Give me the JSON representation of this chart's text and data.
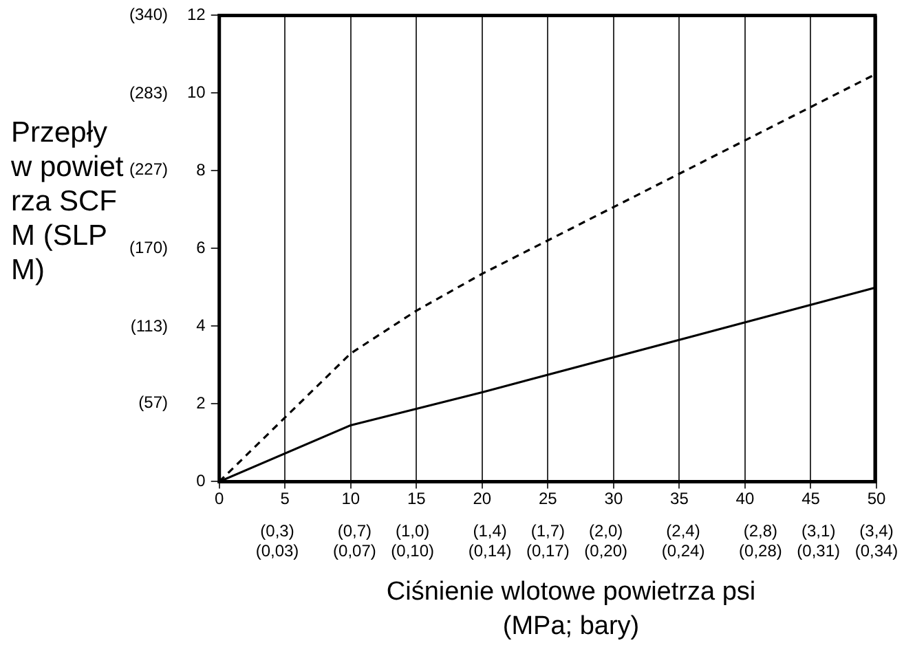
{
  "chart_data": {
    "type": "line",
    "xlabel": "Ciśnienie wlotowe powietrza psi (MPa; bary)",
    "y2label": "Przepływ powietrza SCFM (SLPM)",
    "xlim": [
      0,
      50
    ],
    "ylim": [
      0,
      12
    ],
    "xticks": [
      0,
      5,
      10,
      15,
      20,
      25,
      30,
      35,
      40,
      45,
      50
    ],
    "yticks": [
      0,
      2,
      4,
      6,
      8,
      10,
      12
    ],
    "x2lim": [
      0,
      3.4
    ],
    "x2ticks": [
      {
        "value": 0.3,
        "label": "(0,3)"
      },
      {
        "value": 0.7,
        "label": "(0,7)"
      },
      {
        "value": 1.0,
        "label": "(1,0)"
      },
      {
        "value": 1.4,
        "label": "(1,4)"
      },
      {
        "value": 1.7,
        "label": "(1,7)"
      },
      {
        "value": 2.0,
        "label": "(2,0)"
      },
      {
        "value": 2.4,
        "label": "(2,4)"
      },
      {
        "value": 2.8,
        "label": "(2,8)"
      },
      {
        "value": 3.1,
        "label": "(3,1)"
      },
      {
        "value": 3.4,
        "label": "(3,4)"
      }
    ],
    "annotations": [
      "(0,03)",
      "(0,07)",
      "(0,10)",
      "(0,14)",
      "(0,17)",
      "(0,20)",
      "(0,24)",
      "(0,28)",
      "(0,31)",
      "(0,34)"
    ],
    "y2lim": [
      0,
      340
    ],
    "y2ticks": [
      {
        "value": 57,
        "label": "(57)"
      },
      {
        "value": 113,
        "label": "(113)"
      },
      {
        "value": 170,
        "label": "(170)"
      },
      {
        "value": 227,
        "label": "(227)"
      },
      {
        "value": 283,
        "label": "(283)"
      },
      {
        "value": 340,
        "label": "(340)"
      }
    ],
    "grid": "x",
    "marker": "none",
    "series": [
      {
        "color": "#000000",
        "line_style": "dashed",
        "x": [
          0,
          10,
          15,
          20,
          50
        ],
        "values": [
          0,
          3.3,
          4.4,
          5.35,
          10.5
        ]
      },
      {
        "color": "#000000",
        "line_style": "solid",
        "x": [
          0,
          10,
          20,
          50
        ],
        "values": [
          0,
          1.45,
          2.3,
          5.0
        ]
      }
    ]
  }
}
